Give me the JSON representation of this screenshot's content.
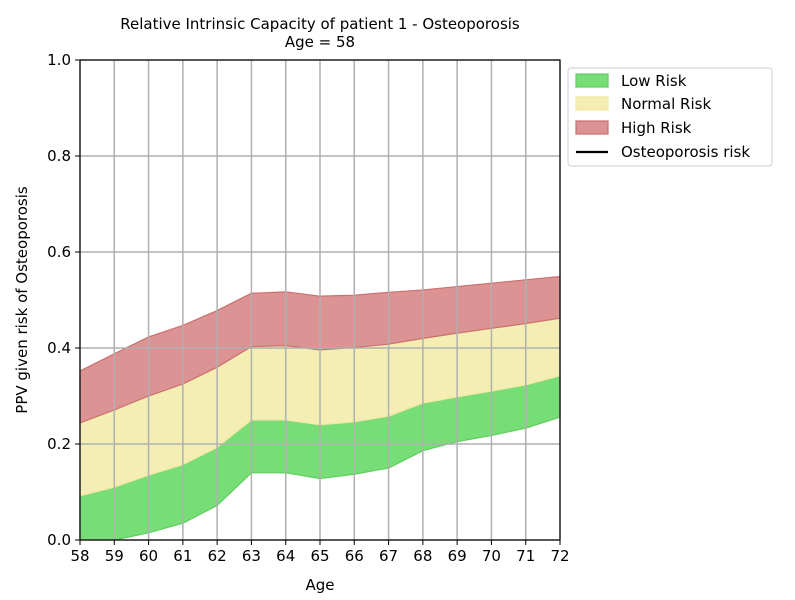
{
  "chart_data": {
    "type": "area",
    "title": "Relative Intrinsic Capacity of patient 1 - Osteoporosis",
    "subtitle": "Age = 58",
    "xlabel": "Age",
    "ylabel": "PPV given risk of Osteoporosis",
    "x": [
      58,
      59,
      60,
      61,
      62,
      63,
      64,
      65,
      66,
      67,
      68,
      69,
      70,
      71,
      72
    ],
    "xlim": [
      58,
      72
    ],
    "ylim": [
      0.0,
      1.0
    ],
    "xticks": [
      "58",
      "59",
      "60",
      "61",
      "62",
      "63",
      "64",
      "65",
      "66",
      "67",
      "68",
      "69",
      "70",
      "71",
      "72"
    ],
    "yticks": [
      "0.0",
      "0.2",
      "0.4",
      "0.6",
      "0.8",
      "1.0"
    ],
    "grid": true,
    "legend_position": "outside-top-right",
    "bands": [
      {
        "name": "Low Risk",
        "color": "#77dd77",
        "edge": "#5ccf5c",
        "lower": [
          0.0,
          0.0,
          0.015,
          0.035,
          0.072,
          0.14,
          0.14,
          0.128,
          0.137,
          0.15,
          0.186,
          0.205,
          0.218,
          0.233,
          0.256
        ],
        "upper": [
          0.092,
          0.11,
          0.135,
          0.157,
          0.193,
          0.25,
          0.25,
          0.24,
          0.246,
          0.258,
          0.285,
          0.298,
          0.31,
          0.323,
          0.342
        ]
      },
      {
        "name": "Normal Risk",
        "color": "#f4eeb4",
        "edge": "#efe7a0",
        "lower": [
          0.092,
          0.11,
          0.135,
          0.157,
          0.193,
          0.25,
          0.25,
          0.24,
          0.246,
          0.258,
          0.285,
          0.298,
          0.31,
          0.323,
          0.342
        ],
        "upper": [
          0.244,
          0.271,
          0.3,
          0.325,
          0.36,
          0.403,
          0.405,
          0.396,
          0.401,
          0.408,
          0.42,
          0.431,
          0.441,
          0.451,
          0.462
        ]
      },
      {
        "name": "High Risk",
        "color": "#dc9393",
        "edge": "#cc6f6f",
        "lower": [
          0.244,
          0.271,
          0.3,
          0.325,
          0.36,
          0.403,
          0.405,
          0.396,
          0.401,
          0.408,
          0.42,
          0.431,
          0.441,
          0.451,
          0.462
        ],
        "upper": [
          0.352,
          0.388,
          0.423,
          0.447,
          0.478,
          0.514,
          0.517,
          0.508,
          0.51,
          0.516,
          0.521,
          0.528,
          0.535,
          0.542,
          0.549
        ]
      }
    ],
    "line": {
      "name": "Osteoporosis risk",
      "color": "#000000",
      "values": []
    },
    "legend": [
      "Low Risk",
      "Normal Risk",
      "High Risk",
      "Osteoporosis risk"
    ]
  }
}
